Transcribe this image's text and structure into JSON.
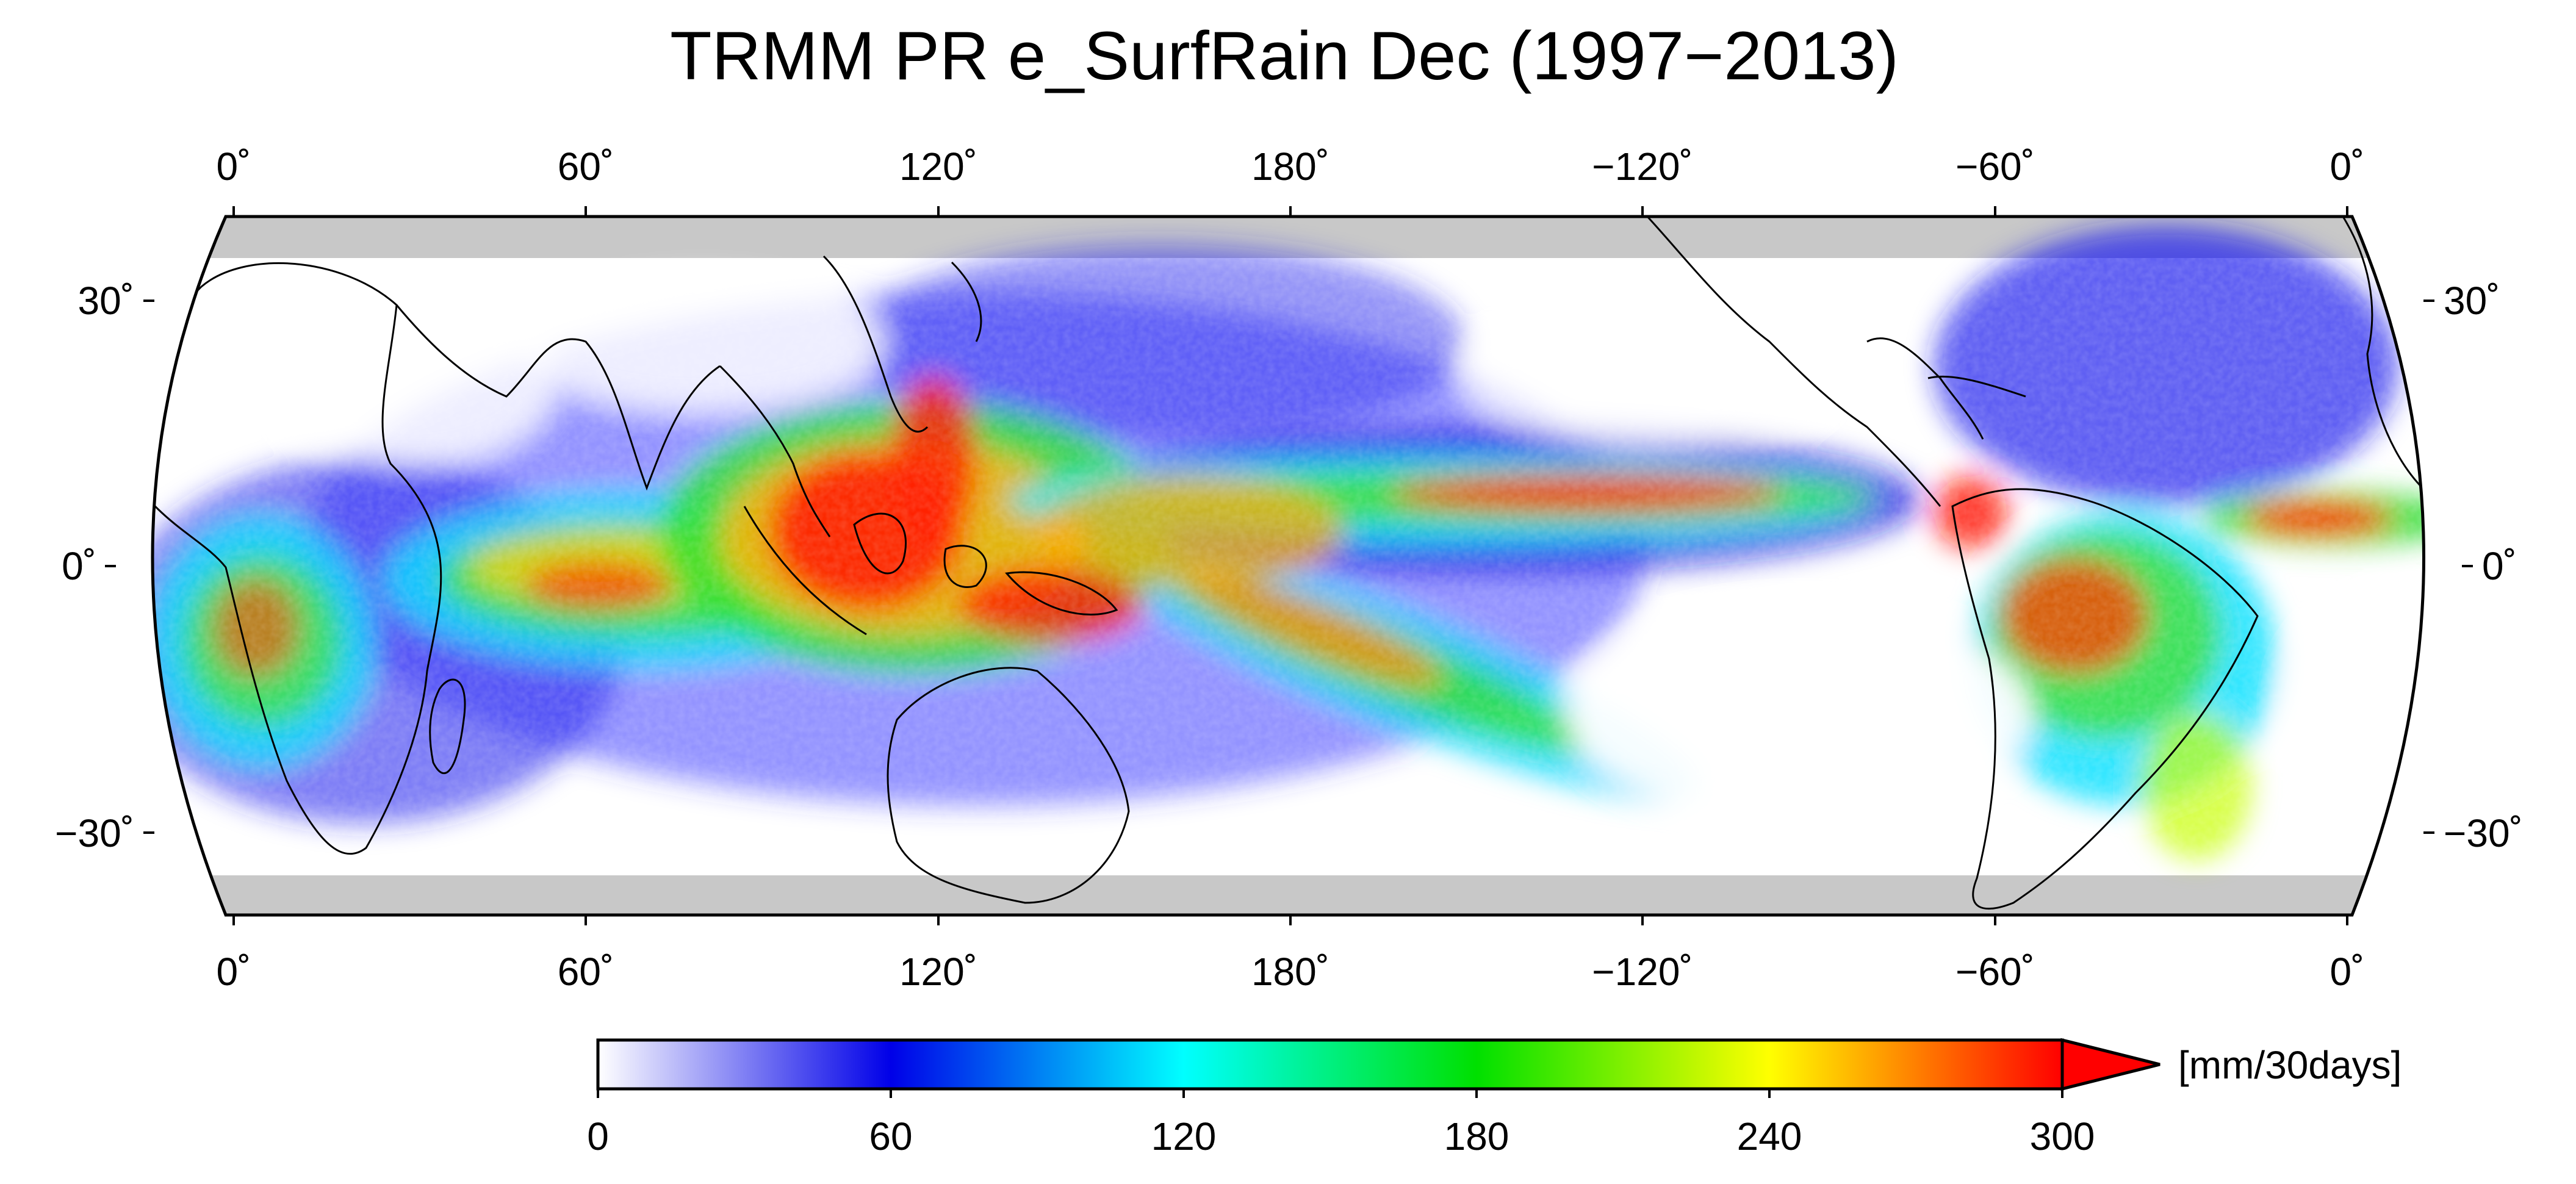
{
  "figure": {
    "title": "TRMM PR e_SurfRain Dec (1997−2013)"
  },
  "map": {
    "projection": "Eckert-like pseudocylindrical (curved sides)",
    "lon_labels": [
      "0˚",
      "60˚",
      "120˚",
      "180˚",
      "−120˚",
      "−60˚",
      "0˚"
    ],
    "lat_labels": [
      "30˚",
      "0˚",
      "−30˚"
    ],
    "data_lat_range": [
      -36,
      36
    ],
    "no_data_color": "#c8c8c8",
    "field_description": "December mean near-surface rain rate; max along ITCZ, SPCZ, Maritime Continent, Amazon",
    "coastline_color": "#000000"
  },
  "colorbar": {
    "tick_labels": [
      "0",
      "60",
      "120",
      "180",
      "240",
      "300"
    ],
    "unit": "[mm/30days]",
    "min": 0,
    "max": 300,
    "extend": "max",
    "stops": [
      "#ffffff",
      "#0000e8",
      "#00ffff",
      "#00e000",
      "#ffff00",
      "#ff0000"
    ]
  },
  "chart_data": {
    "type": "heatmap",
    "title": "TRMM PR e_SurfRain Dec (1997−2013)",
    "colorbar_range": [
      0,
      300
    ],
    "colorbar_unit": "[mm/30days]",
    "x_ticks": [
      "0˚",
      "60˚",
      "120˚",
      "180˚",
      "−120˚",
      "−60˚",
      "0˚"
    ],
    "y_ticks": [
      "30˚",
      "0˚",
      "−30˚"
    ]
  }
}
